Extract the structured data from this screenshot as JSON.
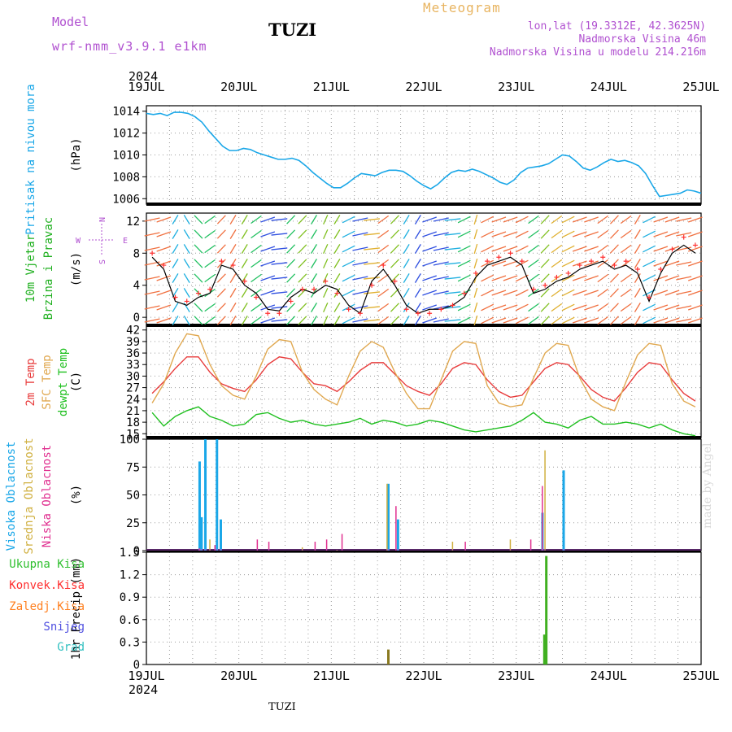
{
  "header": {
    "model_label": "Model",
    "model_name": "wrf-nmm_v3.9.1 e1km",
    "station": "TUZI",
    "meteogram_label": "Meteogram",
    "lonlat": "lon,lat (19.3312E, 42.3625N)",
    "elevation": "Nadmorska Visina 46m",
    "model_elevation": "Nadmorska Visina u modelu 214.216m"
  },
  "footer": {
    "station": "TUZI",
    "made_by": "made by Angel"
  },
  "colors": {
    "pressure": "#1aa7e8",
    "wind_speed": "#000000",
    "gust": "#ff3030",
    "temp_2m": "#e83c3c",
    "temp_sfc": "#e0a850",
    "dewpoint": "#20c020",
    "cloud_high": "#1aa7e8",
    "cloud_mid": "#d0b040",
    "cloud_low": "#e03090",
    "precip_total": "#30c030",
    "precip_conv": "#ff3030",
    "precip_frozen": "#ff8020",
    "snow": "#5050e0",
    "graupel": "#30c0c0"
  },
  "chart_data": {
    "type": "line",
    "time_axis": {
      "year": "2024",
      "start": "2024-07-19T00:00",
      "end": "2024-07-25T00:00",
      "tick_labels": [
        "19JUL",
        "20JUL",
        "21JUL",
        "22JUL",
        "23JUL",
        "24JUL",
        "25JUL"
      ]
    },
    "panels": [
      {
        "id": "pressure",
        "ylabels": [
          "Pritisak na nivou mora"
        ],
        "unit": "(hPa)",
        "ylim": [
          1005.5,
          1014.5
        ],
        "yticks": [
          1006,
          1008,
          1010,
          1012,
          1014
        ],
        "series": [
          {
            "values_hourly": [
              1013.8,
              1013.7,
              1013.8,
              1013.6,
              1013.9,
              1013.9,
              1013.8,
              1013.5,
              1013.0,
              1012.2,
              1011.5,
              1010.8,
              1010.4,
              1010.4,
              1010.6,
              1010.5,
              1010.2,
              1010.0,
              1009.8,
              1009.6,
              1009.6,
              1009.7,
              1009.5,
              1009.0,
              1008.4,
              1007.9,
              1007.4,
              1007.0,
              1007.0,
              1007.4,
              1007.9,
              1008.3,
              1008.2,
              1008.1,
              1008.4,
              1008.6,
              1008.6,
              1008.5,
              1008.1,
              1007.6,
              1007.2,
              1006.9,
              1007.3,
              1007.9,
              1008.4,
              1008.6,
              1008.5,
              1008.7,
              1008.5,
              1008.2,
              1007.9,
              1007.5,
              1007.3,
              1007.7,
              1008.4,
              1008.8,
              1008.9,
              1009.0,
              1009.2,
              1009.6,
              1010.0,
              1009.9,
              1009.4,
              1008.8,
              1008.6,
              1008.9,
              1009.3,
              1009.6,
              1009.4,
              1009.5,
              1009.3,
              1009.0,
              1008.3,
              1007.2,
              1006.2,
              1006.3,
              1006.4,
              1006.5,
              1006.8,
              1006.7,
              1006.5
            ]
          }
        ]
      },
      {
        "id": "wind",
        "ylabels": [
          "10m Vjetar",
          "Brzina i Pravac"
        ],
        "unit": "(m/s)",
        "ylim": [
          -1,
          13
        ],
        "yticks": [
          0,
          4,
          8,
          12
        ],
        "compass": {
          "n": "N",
          "e": "E",
          "s": "S",
          "w": "W"
        },
        "series": [
          {
            "name": "speed",
            "values_3h": [
              7.5,
              6.0,
              2.0,
              1.5,
              2.5,
              3.0,
              6.5,
              6.0,
              4.0,
              3.0,
              1.0,
              0.8,
              2.5,
              3.5,
              3.0,
              4.0,
              3.5,
              1.5,
              0.5,
              4.5,
              6.0,
              4.0,
              1.5,
              0.5,
              1.0,
              1.0,
              1.5,
              2.5,
              5.0,
              6.5,
              7.0,
              7.5,
              6.5,
              3.0,
              3.5,
              4.5,
              5.0,
              6.0,
              6.5,
              7.0,
              6.0,
              6.5,
              5.5,
              2.0,
              5.5,
              8.0,
              9.0,
              8.0
            ]
          },
          {
            "name": "gust",
            "values_3h": [
              8.0,
              6.5,
              2.5,
              2.0,
              3.0,
              3.5,
              7.0,
              6.5,
              4.5,
              2.5,
              0.5,
              0.5,
              2.0,
              3.5,
              3.5,
              4.5,
              3.0,
              1.0,
              0.5,
              4.0,
              6.5,
              4.5,
              1.0,
              0.5,
              0.5,
              1.0,
              1.5,
              3.0,
              5.5,
              7.0,
              7.5,
              8.0,
              7.0,
              3.5,
              4.0,
              5.0,
              5.5,
              6.5,
              7.0,
              7.5,
              6.5,
              7.0,
              6.0,
              2.5,
              6.0,
              8.5,
              10.0,
              9.0
            ]
          },
          {
            "name": "direction",
            "values_3h": [
              250,
              240,
              200,
              160,
              150,
              40,
              30,
              20,
              200,
              220,
              240,
              260,
              210,
              30,
              20,
              15,
              200,
              230,
              250,
              260,
              220,
              30,
              20,
              200,
              240,
              250,
              260,
              230,
              190,
              50,
              60,
              60,
              50,
              40,
              30,
              40,
              50,
              60,
              60,
              40,
              30,
              40,
              200,
              50,
              60,
              60,
              70,
              60
            ]
          }
        ]
      },
      {
        "id": "temperature",
        "ylabels": [
          "2m Temp",
          "SFC Temp",
          "dewpt Temp"
        ],
        "unit": "(C)",
        "ylim": [
          14,
          43
        ],
        "yticks": [
          15,
          18,
          21,
          24,
          27,
          30,
          33,
          36,
          39,
          42
        ],
        "series": [
          {
            "name": "2m Temp",
            "values_3h": [
              25.5,
              28.5,
              32.0,
              35.0,
              35.0,
              31.0,
              28.0,
              26.8,
              26.0,
              29.0,
              33.0,
              35.0,
              34.5,
              31.0,
              28.0,
              27.5,
              26.0,
              28.5,
              31.5,
              33.5,
              33.5,
              30.5,
              27.5,
              26.0,
              25.0,
              28.0,
              32.0,
              33.5,
              33.0,
              29.0,
              26.0,
              24.5,
              25.0,
              28.5,
              32.0,
              33.5,
              33.0,
              30.0,
              26.5,
              24.5,
              23.5,
              27.0,
              31.0,
              33.5,
              33.0,
              29.0,
              25.5,
              23.5
            ]
          },
          {
            "name": "SFC Temp",
            "values_3h": [
              23.0,
              28.0,
              36.0,
              41.0,
              40.5,
              33.0,
              27.5,
              25.0,
              24.0,
              30.0,
              37.0,
              39.5,
              39.0,
              31.0,
              26.5,
              24.0,
              22.5,
              30.0,
              36.5,
              39.0,
              37.5,
              31.0,
              25.5,
              21.5,
              21.5,
              29.0,
              36.5,
              39.0,
              38.5,
              27.5,
              23.0,
              22.0,
              22.5,
              29.5,
              36.0,
              38.5,
              38.0,
              29.5,
              24.0,
              22.0,
              21.0,
              28.5,
              35.5,
              38.5,
              38.0,
              28.0,
              23.5,
              22.0
            ]
          },
          {
            "name": "dewpt Temp",
            "values_3h": [
              20.5,
              17.0,
              19.5,
              21.0,
              22.0,
              19.5,
              18.5,
              17.0,
              17.5,
              20.0,
              20.5,
              19.0,
              18.0,
              18.5,
              17.5,
              17.0,
              17.5,
              18.0,
              19.0,
              17.5,
              18.5,
              18.0,
              17.0,
              17.5,
              18.5,
              18.0,
              17.0,
              16.0,
              15.5,
              16.0,
              16.5,
              17.0,
              18.5,
              20.5,
              18.0,
              17.5,
              16.5,
              18.5,
              19.5,
              17.5,
              17.5,
              18.0,
              17.5,
              16.5,
              17.5,
              16.0,
              15.0,
              14.5
            ]
          }
        ]
      },
      {
        "id": "cloud",
        "ylabels": [
          "Visoka Oblacnost",
          "Srednja Oblacnost",
          "Niska Oblacnost"
        ],
        "unit": "(%)",
        "ylim": [
          0,
          100
        ],
        "yticks": [
          0,
          25,
          50,
          75,
          100
        ],
        "series": [
          {
            "name": "Visoka Oblacnost",
            "bars": [
              [
                13.5,
                80
              ],
              [
                14,
                30
              ],
              [
                15,
                100
              ],
              [
                18,
                100
              ],
              [
                19,
                28
              ],
              [
                62.5,
                60
              ],
              [
                65,
                28
              ],
              [
                102.5,
                34
              ],
              [
                108,
                72
              ]
            ]
          },
          {
            "name": "Srednja Oblacnost",
            "bars": [
              [
                16,
                10
              ],
              [
                40,
                3
              ],
              [
                49,
                1
              ],
              [
                62,
                60
              ],
              [
                79,
                8
              ],
              [
                94,
                10
              ],
              [
                103,
                90
              ]
            ]
          },
          {
            "name": "Niska Oblacnost",
            "bars": [
              [
                13,
                2
              ],
              [
                17,
                5
              ],
              [
                28,
                10
              ],
              [
                31,
                8
              ],
              [
                43,
                8
              ],
              [
                46,
                10
              ],
              [
                50,
                15
              ],
              [
                64,
                40
              ],
              [
                82,
                8
              ],
              [
                99,
                10
              ],
              [
                102,
                58
              ]
            ]
          }
        ]
      },
      {
        "id": "precip",
        "ylabels": [
          "Ukupna Kisa",
          "Konvek.Kisa",
          "Zaledj.Kisa",
          "Snijeg",
          "Grad"
        ],
        "unit": "1hr Precip (mm)",
        "ylim": [
          0,
          1.5
        ],
        "yticks": [
          0,
          0.3,
          0.6,
          0.9,
          1.2,
          1.5
        ],
        "series": [
          {
            "name": "Ukupna Kisa",
            "bars": [
              [
                62.5,
                0.2
              ],
              [
                103,
                0.4
              ],
              [
                103.5,
                1.45
              ]
            ]
          }
        ]
      }
    ]
  }
}
